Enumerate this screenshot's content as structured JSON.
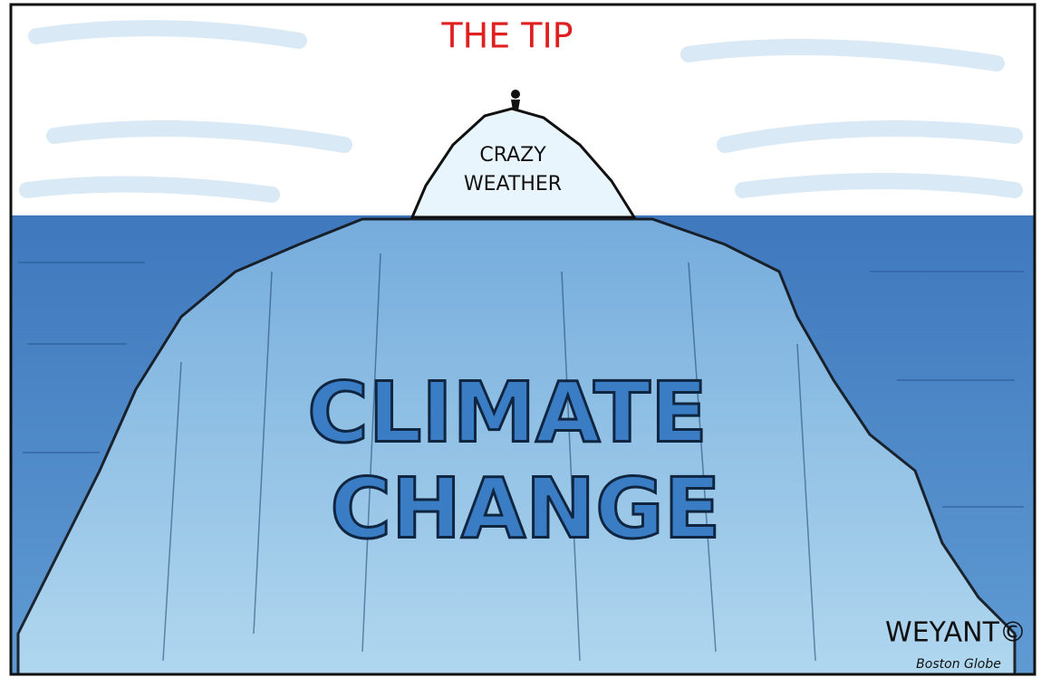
{
  "title": "THE TIP",
  "tip_label": {
    "lines": [
      "CRAZY",
      "WEATHER"
    ]
  },
  "iceberg_label": {
    "lines": [
      "CLIMATE",
      "CHANGE"
    ]
  },
  "signature": {
    "artist": "WEYANT©",
    "publication": "Boston Globe"
  }
}
